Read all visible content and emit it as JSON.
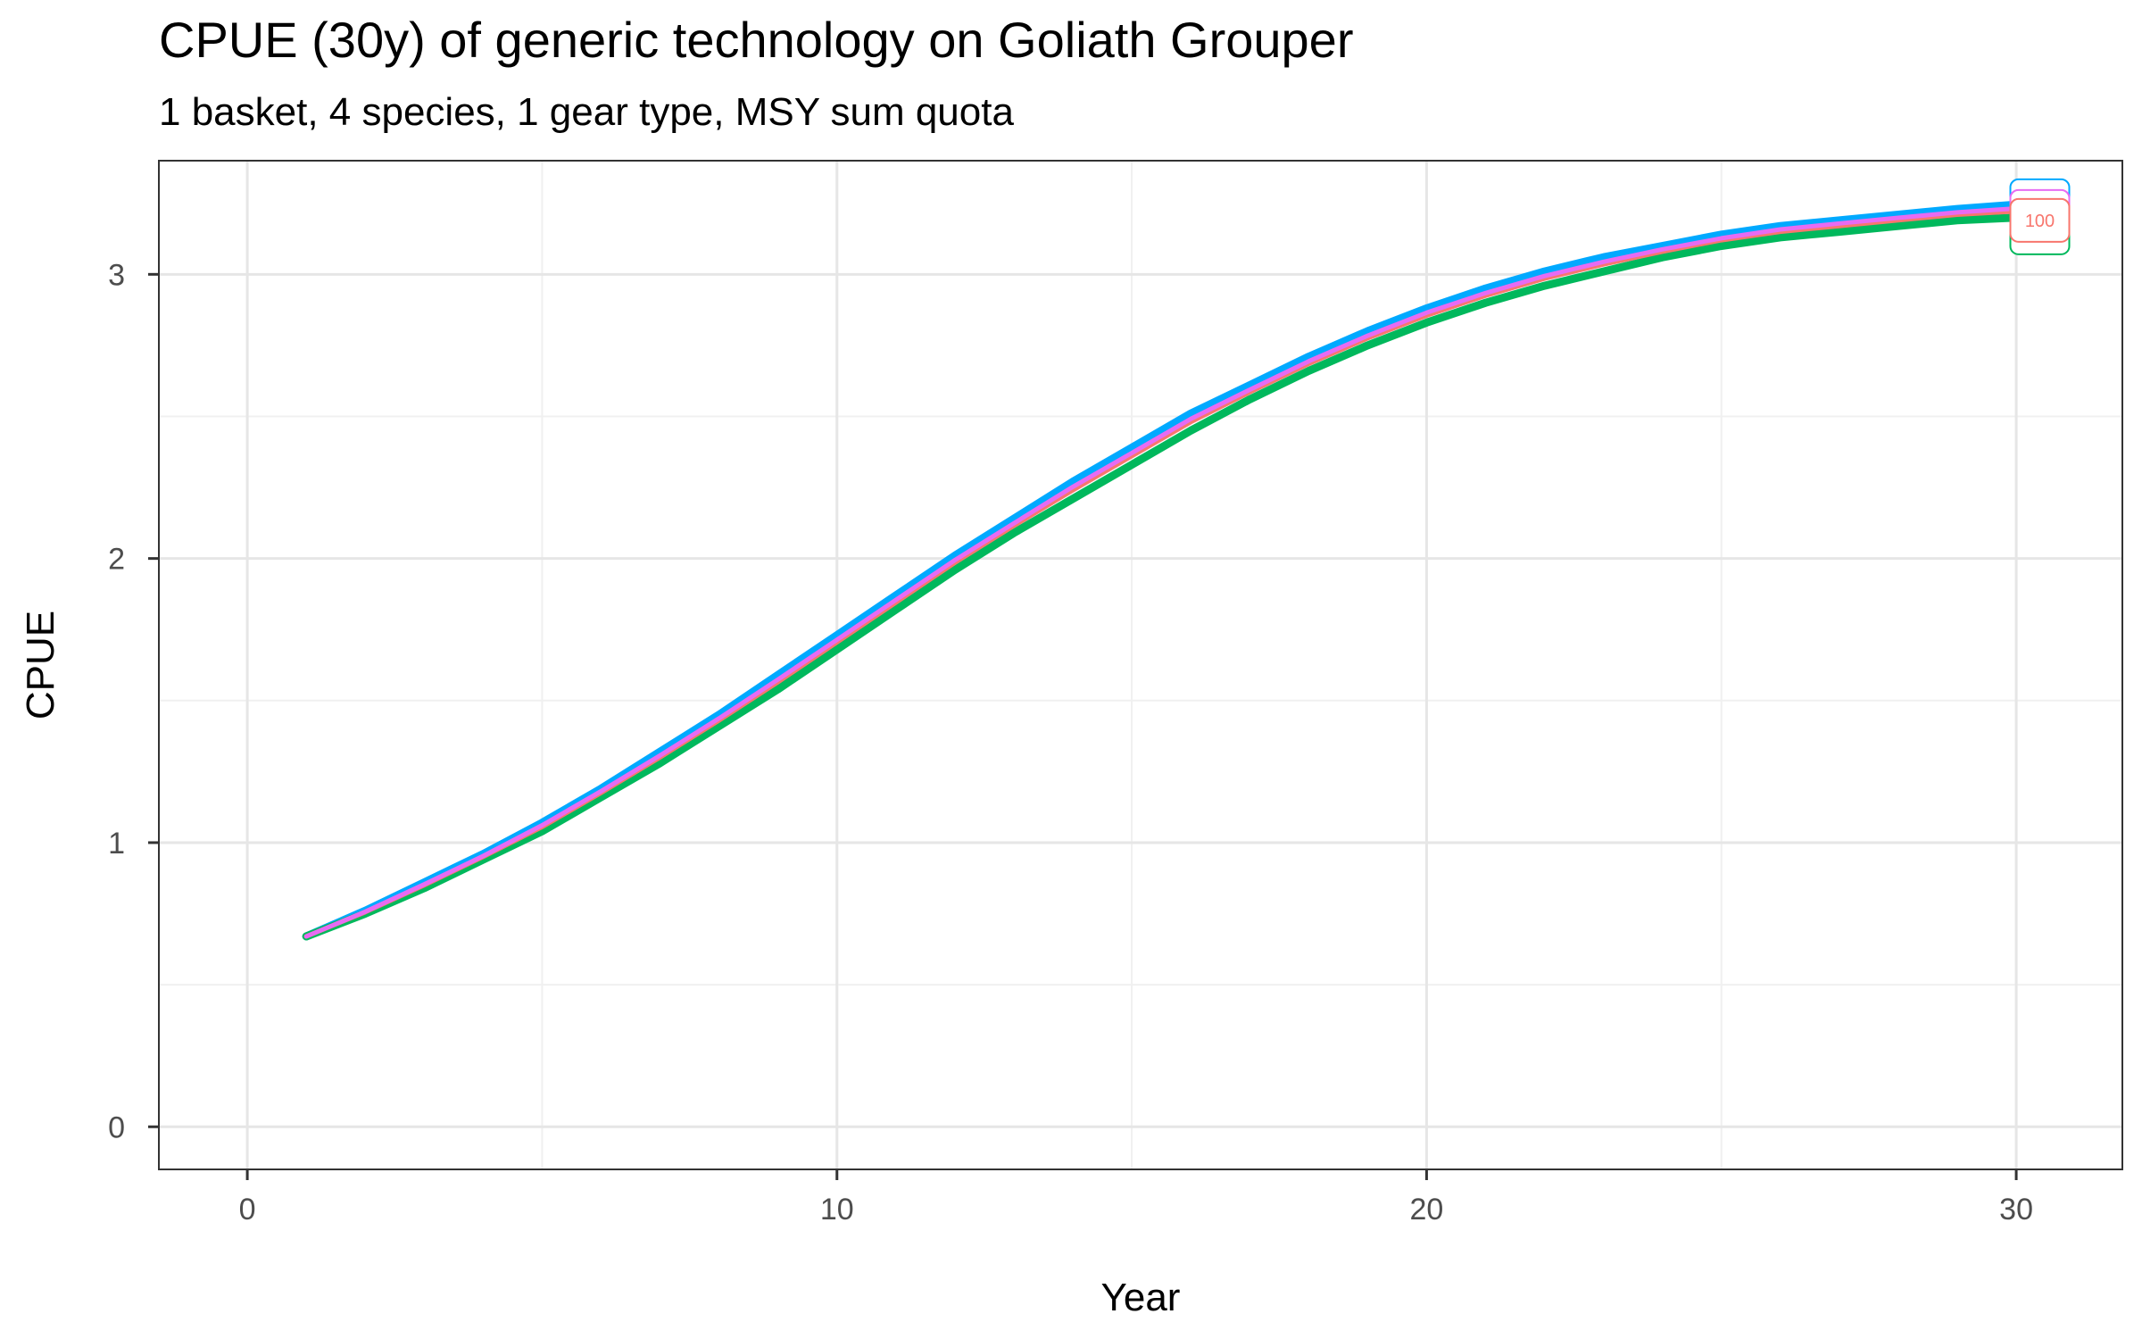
{
  "chart_data": {
    "type": "line",
    "title": "CPUE (30y) of generic technology on Goliath Grouper",
    "subtitle": "1 basket, 4 species, 1 gear type, MSY sum quota",
    "xlabel": "Year",
    "ylabel": "CPUE",
    "xlim": [
      -1.5,
      31.8
    ],
    "ylim": [
      -0.15,
      3.4
    ],
    "x_ticks": [
      0,
      10,
      20,
      30
    ],
    "y_ticks": [
      0,
      1,
      2,
      3
    ],
    "grid": true,
    "legend": "none",
    "x": [
      1,
      2,
      3,
      4,
      5,
      6,
      7,
      8,
      9,
      10,
      11,
      12,
      13,
      14,
      15,
      16,
      17,
      18,
      19,
      20,
      21,
      22,
      23,
      24,
      25,
      26,
      27,
      28,
      29,
      30
    ],
    "series": [
      {
        "color": "#00a9ff",
        "width": 9,
        "values": [
          0.67,
          0.76,
          0.86,
          0.96,
          1.07,
          1.19,
          1.32,
          1.45,
          1.59,
          1.73,
          1.87,
          2.01,
          2.14,
          2.27,
          2.39,
          2.51,
          2.61,
          2.71,
          2.8,
          2.88,
          2.95,
          3.01,
          3.06,
          3.1,
          3.14,
          3.17,
          3.19,
          3.21,
          3.23,
          3.245
        ]
      },
      {
        "color": "#00b85c",
        "width": 9,
        "values": [
          0.67,
          0.75,
          0.84,
          0.94,
          1.04,
          1.16,
          1.28,
          1.41,
          1.54,
          1.68,
          1.82,
          1.96,
          2.09,
          2.21,
          2.33,
          2.45,
          2.56,
          2.66,
          2.75,
          2.83,
          2.9,
          2.96,
          3.01,
          3.06,
          3.1,
          3.13,
          3.15,
          3.17,
          3.19,
          3.2
        ]
      },
      {
        "color": "#f8766d",
        "width": 5,
        "values": [
          0.67,
          0.755,
          0.85,
          0.95,
          1.055,
          1.175,
          1.3,
          1.43,
          1.565,
          1.705,
          1.845,
          1.985,
          2.115,
          2.24,
          2.36,
          2.48,
          2.585,
          2.685,
          2.775,
          2.855,
          2.925,
          2.985,
          3.035,
          3.08,
          3.12,
          3.15,
          3.17,
          3.19,
          3.21,
          3.222
        ]
      },
      {
        "color": "#e76bf3",
        "width": 5,
        "values": [
          0.67,
          0.757,
          0.853,
          0.953,
          1.061,
          1.181,
          1.307,
          1.437,
          1.574,
          1.714,
          1.854,
          1.994,
          2.124,
          2.252,
          2.371,
          2.491,
          2.594,
          2.694,
          2.784,
          2.865,
          2.934,
          2.994,
          3.044,
          3.088,
          3.127,
          3.158,
          3.179,
          3.199,
          3.218,
          3.232
        ]
      }
    ],
    "end_label": {
      "text": "100",
      "x": 30.4,
      "y": 3.19
    }
  }
}
